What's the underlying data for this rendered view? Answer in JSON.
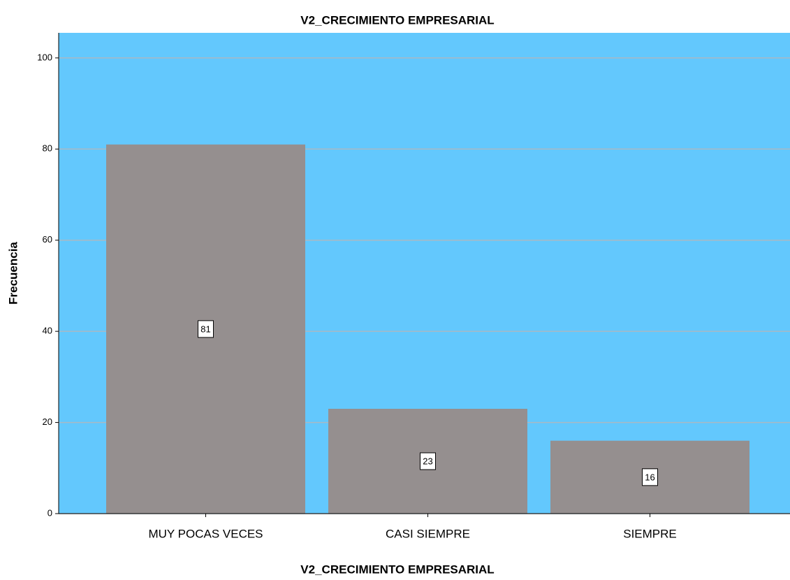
{
  "chart_data": {
    "type": "bar",
    "title": "V2_CRECIMIENTO EMPRESARIAL",
    "x_label": "V2_CRECIMIENTO EMPRESARIAL",
    "y_label": "Frecuencia",
    "categories": [
      "MUY POCAS VECES",
      "CASI SIEMPRE",
      "SIEMPRE"
    ],
    "values": [
      81,
      23,
      16
    ],
    "color": "#958f8f",
    "background": "#63c8fd",
    "ylim": [
      0,
      105.5
    ],
    "yticks": [
      0,
      20,
      40,
      60,
      80,
      100
    ],
    "grid": true
  }
}
